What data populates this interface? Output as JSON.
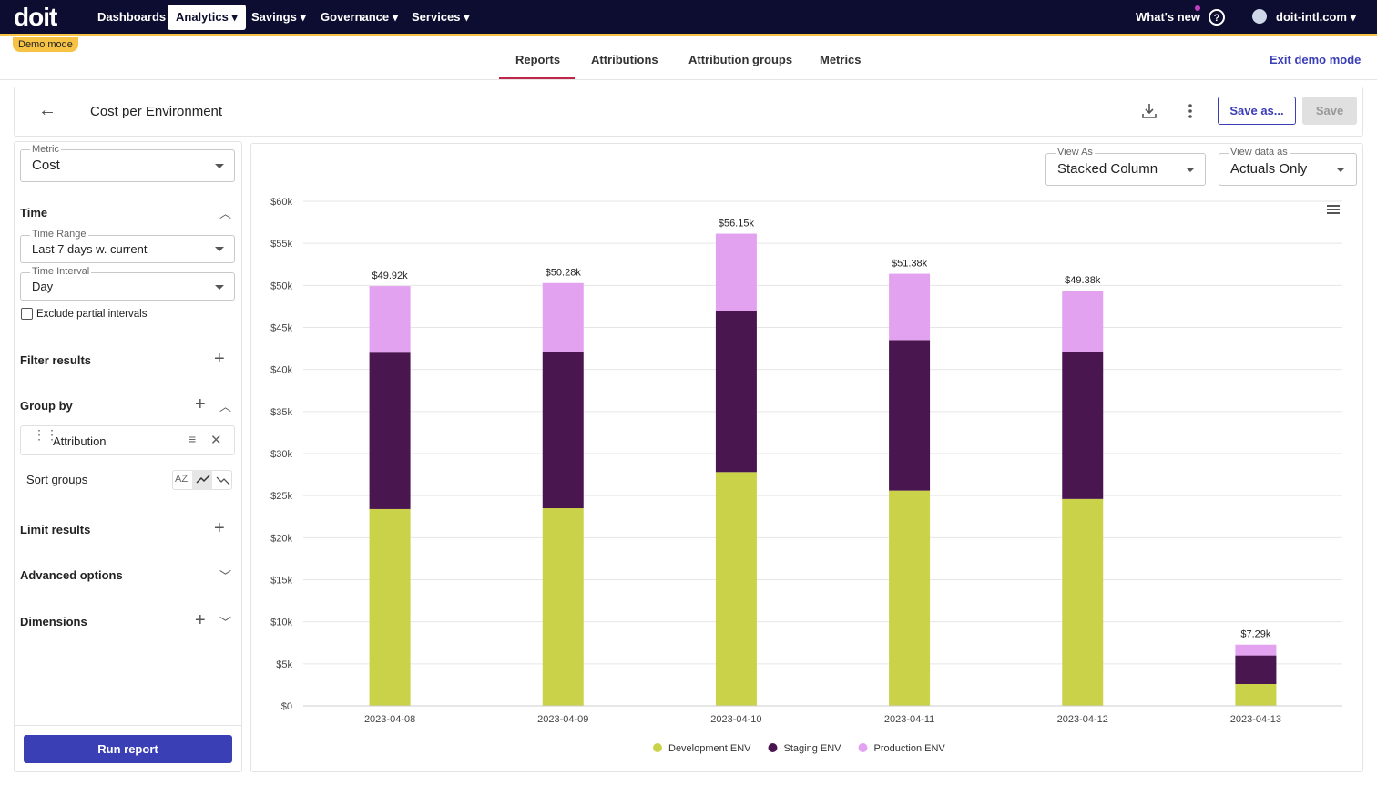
{
  "nav": {
    "logo": "doit",
    "items": [
      "Dashboards",
      "Analytics",
      "Savings",
      "Governance",
      "Services"
    ],
    "whats_new": "What's new",
    "account": "doit-intl.com",
    "demo_badge": "Demo mode"
  },
  "tabs": {
    "items": [
      "Reports",
      "Attributions",
      "Attribution groups",
      "Metrics"
    ],
    "exit": "Exit demo mode"
  },
  "header": {
    "title": "Cost per Environment",
    "save_as": "Save as...",
    "save": "Save"
  },
  "sidebar": {
    "metric_label": "Metric",
    "metric": "Cost",
    "time": "Time",
    "time_range_label": "Time Range",
    "time_range": "Last 7 days w. current",
    "time_interval_label": "Time Interval",
    "time_interval": "Day",
    "exclude": "Exclude partial intervals",
    "filter": "Filter results",
    "group_by": "Group by",
    "group_item": "Attribution",
    "sort_groups": "Sort groups",
    "sort_alpha": "AZ",
    "limit": "Limit results",
    "advanced": "Advanced options",
    "dimensions": "Dimensions",
    "run": "Run report"
  },
  "controls": {
    "view_as_label": "View As",
    "view_as": "Stacked Column",
    "view_data_label": "View data as",
    "view_data": "Actuals Only"
  },
  "chart_data": {
    "type": "stacked_bar",
    "categories": [
      "2023-04-08",
      "2023-04-09",
      "2023-04-10",
      "2023-04-11",
      "2023-04-12",
      "2023-04-13"
    ],
    "series": [
      {
        "name": "Development ENV",
        "color": "#cad24a",
        "values": [
          23400,
          23500,
          27800,
          25600,
          24600,
          2600
        ]
      },
      {
        "name": "Staging ENV",
        "color": "#4a1650",
        "values": [
          18600,
          18600,
          19200,
          17900,
          17500,
          3400
        ]
      },
      {
        "name": "Production ENV",
        "color": "#e3a2f0",
        "values": [
          7920,
          8180,
          9150,
          7880,
          7280,
          1290
        ]
      }
    ],
    "totals": [
      49920,
      50280,
      56150,
      51380,
      49380,
      7290
    ],
    "total_labels": [
      "$49.92k",
      "$50.28k",
      "$56.15k",
      "$51.38k",
      "$49.38k",
      "$7.29k"
    ],
    "ylim": [
      0,
      60000
    ],
    "yticks": [
      {
        "value": 0,
        "label": "$0"
      },
      {
        "value": 5000,
        "label": "$5k"
      },
      {
        "value": 10000,
        "label": "$10k"
      },
      {
        "value": 15000,
        "label": "$15k"
      },
      {
        "value": 20000,
        "label": "$20k"
      },
      {
        "value": 25000,
        "label": "$25k"
      },
      {
        "value": 30000,
        "label": "$30k"
      },
      {
        "value": 35000,
        "label": "$35k"
      },
      {
        "value": 40000,
        "label": "$40k"
      },
      {
        "value": 45000,
        "label": "$45k"
      },
      {
        "value": 50000,
        "label": "$50k"
      },
      {
        "value": 55000,
        "label": "$55k"
      },
      {
        "value": 60000,
        "label": "$60k"
      }
    ],
    "grid": true,
    "legend": "bottom"
  }
}
